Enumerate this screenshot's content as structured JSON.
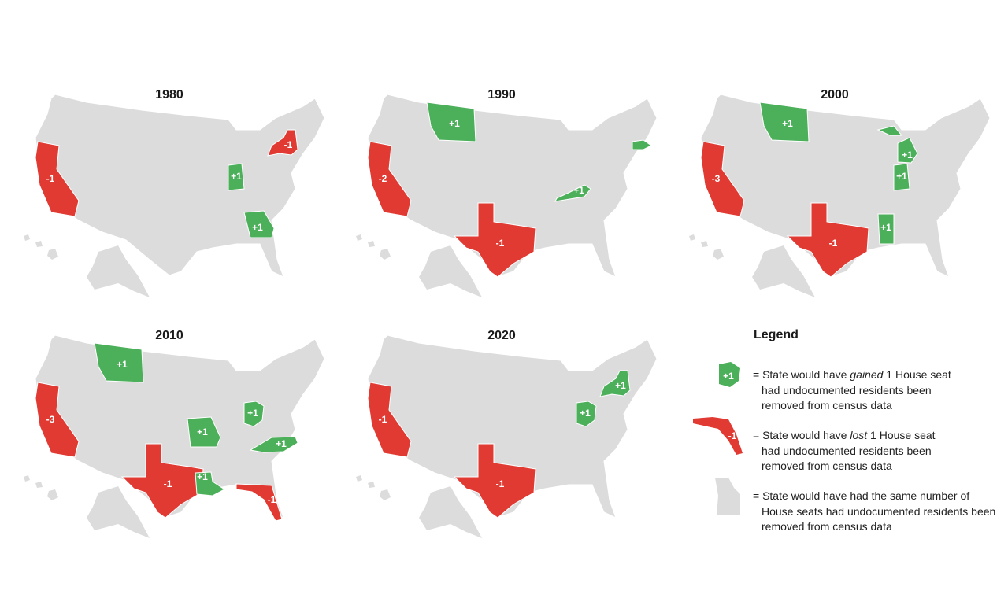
{
  "maps": [
    {
      "year": "1980",
      "changes": [
        {
          "label": "-1",
          "color": "#e03a33"
        },
        {
          "label": "-1",
          "color": "#e03a33"
        },
        {
          "label": "+1",
          "color": "#4caf5a"
        },
        {
          "label": "+1",
          "color": "#4caf5a"
        }
      ]
    },
    {
      "year": "1990",
      "changes": [
        {
          "label": "+1",
          "color": "#4caf5a"
        },
        {
          "color": "#4caf5a"
        },
        {
          "label": "-2",
          "color": "#e03a33"
        },
        {
          "label": "+1",
          "color": "#4caf5a"
        },
        {
          "label": "-1",
          "color": "#e03a33"
        }
      ]
    },
    {
      "year": "2000",
      "changes": [
        {
          "label": "+1",
          "color": "#4caf5a"
        },
        {
          "label": "+1",
          "color": "#4caf5a"
        },
        {
          "label": "+1",
          "color": "#4caf5a"
        },
        {
          "label": "-3",
          "color": "#e03a33"
        },
        {
          "label": "-1",
          "color": "#e03a33"
        },
        {
          "label": "+1",
          "color": "#4caf5a"
        }
      ]
    },
    {
      "year": "2010",
      "changes": [
        {
          "label": "+1",
          "color": "#4caf5a"
        },
        {
          "label": "+1",
          "color": "#4caf5a"
        },
        {
          "label": "+1",
          "color": "#4caf5a"
        },
        {
          "label": "+1",
          "color": "#4caf5a"
        },
        {
          "label": "-3",
          "color": "#e03a33"
        },
        {
          "label": "-1",
          "color": "#e03a33"
        },
        {
          "label": "+1",
          "color": "#4caf5a"
        },
        {
          "label": "-1",
          "color": "#e03a33"
        }
      ]
    },
    {
      "year": "2020",
      "changes": [
        {
          "label": "+1",
          "color": "#4caf5a"
        },
        {
          "label": "+1",
          "color": "#4caf5a"
        },
        {
          "label": "-1",
          "color": "#e03a33"
        },
        {
          "label": "-1",
          "color": "#e03a33"
        }
      ]
    }
  ],
  "base_color": "#dcdcdc",
  "legend": {
    "title": "Legend",
    "items": [
      {
        "icon_label": "+1",
        "color": "#4caf5a",
        "before": "= State would have ",
        "emphasis": "gained",
        "after": " 1 House seat had undocumented residents been removed from census data"
      },
      {
        "icon_label": "-1",
        "color": "#e03a33",
        "before": "= State would have ",
        "emphasis": "lost",
        "after": " 1 House seat had undocumented residents been removed from census data"
      },
      {
        "color": "#dcdcdc",
        "before": "= State would have had the same number of House seats had undocumented residents been removed from census data"
      }
    ]
  }
}
